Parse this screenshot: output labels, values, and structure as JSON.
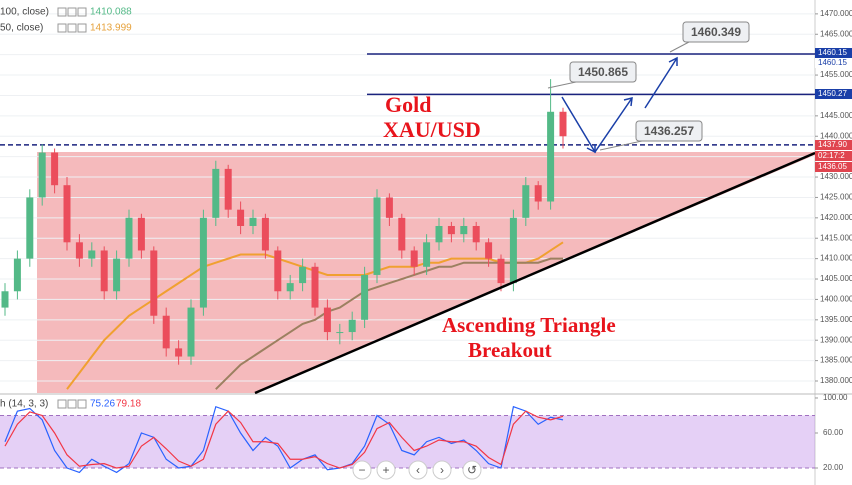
{
  "chart_data": {
    "type": "candlestick",
    "legend": [
      {
        "name": "100, close)",
        "value_label": "1410.088"
      },
      {
        "name": "50, close)",
        "value_label": "1413.999"
      }
    ],
    "open": [
      1398,
      1402,
      1410,
      1425,
      1436,
      1428,
      1414,
      1410,
      1412,
      1402,
      1410,
      1420,
      1412,
      1396,
      1388,
      1386,
      1398,
      1420,
      1432,
      1422,
      1418,
      1420,
      1412,
      1402,
      1404,
      1408,
      1398,
      1392,
      1392,
      1395,
      1406,
      1425,
      1420,
      1412,
      1408,
      1414,
      1418,
      1416,
      1418,
      1414,
      1410,
      1404,
      1420,
      1428,
      1424,
      1446
    ],
    "close": [
      1402,
      1410,
      1425,
      1436,
      1428,
      1414,
      1410,
      1412,
      1402,
      1410,
      1420,
      1412,
      1396,
      1388,
      1386,
      1398,
      1420,
      1432,
      1422,
      1418,
      1420,
      1412,
      1402,
      1404,
      1408,
      1398,
      1392,
      1392,
      1395,
      1406,
      1425,
      1420,
      1412,
      1408,
      1414,
      1418,
      1416,
      1418,
      1414,
      1410,
      1404,
      1420,
      1428,
      1424,
      1446,
      1440
    ],
    "high": [
      1404,
      1412,
      1427,
      1438,
      1437,
      1430,
      1416,
      1414,
      1413,
      1412,
      1422,
      1421,
      1413,
      1398,
      1390,
      1400,
      1422,
      1434,
      1433,
      1424,
      1422,
      1421,
      1413,
      1406,
      1410,
      1409,
      1400,
      1394,
      1397,
      1408,
      1427,
      1426,
      1421,
      1413,
      1416,
      1420,
      1419,
      1420,
      1419,
      1415,
      1411,
      1422,
      1430,
      1429,
      1454,
      1447
    ],
    "low": [
      1396,
      1400,
      1408,
      1423,
      1426,
      1412,
      1408,
      1408,
      1400,
      1400,
      1408,
      1410,
      1394,
      1386,
      1384,
      1384,
      1396,
      1418,
      1420,
      1416,
      1416,
      1410,
      1400,
      1400,
      1402,
      1396,
      1390,
      1389,
      1390,
      1393,
      1404,
      1418,
      1410,
      1406,
      1406,
      1412,
      1414,
      1414,
      1412,
      1408,
      1402,
      1402,
      1418,
      1422,
      1422,
      1437
    ],
    "ma": [
      {
        "color": "#f0a030",
        "values": [
          null,
          null,
          null,
          null,
          null,
          1378,
          1382,
          1386,
          1390,
          1393,
          1396,
          1398,
          1400,
          1402,
          1404,
          1406,
          1408,
          1409,
          1410,
          1411,
          1411,
          1411,
          1410,
          1409,
          1408,
          1407,
          1406,
          1406,
          1406,
          1406,
          1407,
          1408,
          1408,
          1408,
          1409,
          1409,
          1410,
          1410,
          1410,
          1410,
          1409,
          1409,
          1409,
          1410,
          1412,
          1414
        ]
      },
      {
        "color": "#9c8060",
        "values": [
          null,
          null,
          null,
          null,
          null,
          null,
          null,
          null,
          null,
          null,
          null,
          null,
          null,
          null,
          null,
          null,
          null,
          1378,
          1381,
          1384,
          1386,
          1388,
          1390,
          1392,
          1394,
          1395,
          1397,
          1398,
          1400,
          1402,
          1403,
          1404,
          1405,
          1406,
          1407,
          1408,
          1408,
          1409,
          1409,
          1409,
          1409,
          1409,
          1409,
          1409,
          1410,
          1410
        ]
      }
    ],
    "ylim": [
      1377.06,
      1473.4
    ],
    "yticks": [
      {
        "value": 1380,
        "label": "1380.000"
      },
      {
        "value": 1385,
        "label": "1385.000"
      },
      {
        "value": 1390,
        "label": "1390.000"
      },
      {
        "value": 1395,
        "label": "1395.000"
      },
      {
        "value": 1400,
        "label": "1400.000"
      },
      {
        "value": 1405,
        "label": "1405.000"
      },
      {
        "value": 1410,
        "label": "1410.000"
      },
      {
        "value": 1415,
        "label": "1415.000"
      },
      {
        "value": 1420,
        "label": "1420.000"
      },
      {
        "value": 1425,
        "label": "1425.000"
      },
      {
        "value": 1430,
        "label": "1430.000"
      },
      {
        "value": 1435,
        "label": "1435.000"
      },
      {
        "value": 1440,
        "label": "1440.000"
      },
      {
        "value": 1445,
        "label": "1445.000"
      },
      {
        "value": 1450,
        "label": "1450.000"
      },
      {
        "value": 1455,
        "label": "1455.000"
      },
      {
        "value": 1460,
        "label": "1460.000"
      },
      {
        "value": 1465,
        "label": "1465.000"
      },
      {
        "value": 1470,
        "label": "1470.000"
      }
    ],
    "hlines": [
      {
        "value": 1460.15,
        "color": "#1a237e"
      },
      {
        "value": 1450.27,
        "color": "#1a237e"
      },
      {
        "value": 1437.9,
        "color": "#1a237e"
      }
    ],
    "price_tags": [
      {
        "label": "1460.15",
        "color": "#1a3fa8"
      },
      {
        "label": "1460.15",
        "color": "#1a3fa8"
      },
      {
        "label": "1450.27",
        "color": "#1a3fa8"
      },
      {
        "label": "1437.90",
        "color": "#e0454f"
      },
      {
        "label": "02:17:2",
        "color": "#e0454f"
      },
      {
        "label": "1436.05",
        "color": "#e0454f"
      }
    ],
    "annotations": [
      "Gold",
      "XAU/USD",
      "Ascending Triangle",
      "Breakout"
    ],
    "callouts": [
      "1450.865",
      "1460.349",
      "1436.257"
    ],
    "stoch": {
      "legend": {
        "name": "h (14, 3, 3)",
        "k_label": "75.26",
        "d_label": "79.18"
      },
      "k": {
        "color": "#2962ff",
        "values": [
          50,
          85,
          88,
          75,
          40,
          20,
          15,
          30,
          22,
          15,
          25,
          60,
          55,
          30,
          20,
          22,
          40,
          90,
          85,
          60,
          40,
          55,
          45,
          20,
          30,
          35,
          18,
          20,
          25,
          45,
          80,
          70,
          40,
          35,
          50,
          55,
          48,
          52,
          40,
          25,
          20,
          90,
          85,
          70,
          78,
          75
        ]
      },
      "d": {
        "color": "#f23645",
        "values": [
          45,
          70,
          84,
          80,
          60,
          35,
          22,
          24,
          25,
          20,
          22,
          45,
          55,
          42,
          28,
          22,
          30,
          70,
          85,
          72,
          50,
          50,
          48,
          30,
          30,
          33,
          25,
          20,
          24,
          38,
          65,
          72,
          55,
          40,
          45,
          52,
          50,
          50,
          45,
          32,
          24,
          70,
          85,
          78,
          75,
          79
        ]
      },
      "band": [
        20,
        80
      ],
      "ylim": [
        6.3,
        103.4
      ],
      "yticks": [
        {
          "value": 100,
          "label": "100.00"
        },
        {
          "value": 60,
          "label": "60.00"
        },
        {
          "value": 20,
          "label": "20.00"
        }
      ]
    }
  }
}
